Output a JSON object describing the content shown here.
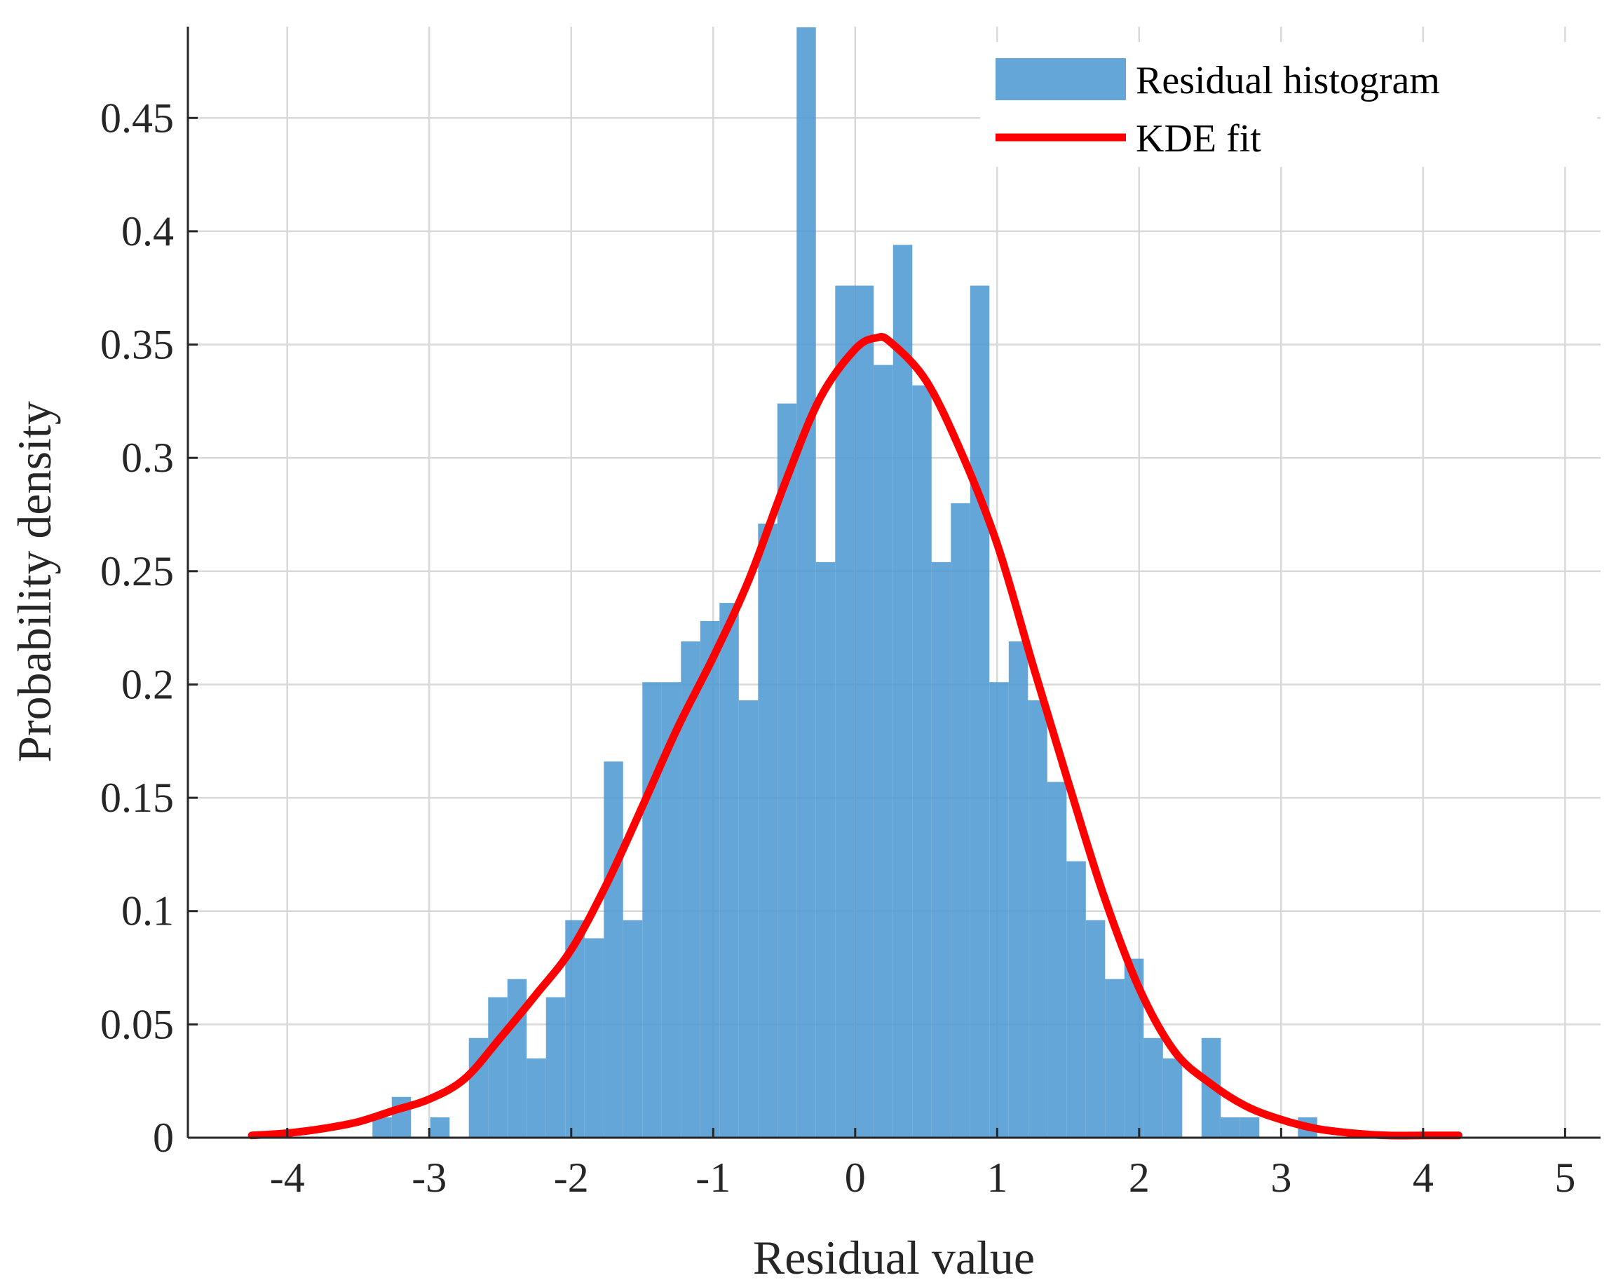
{
  "chart_data": {
    "type": "bar",
    "title": "",
    "xlabel": "Residual value",
    "ylabel": "Probability density",
    "xlim": [
      -4.7,
      5.25
    ],
    "ylim": [
      0,
      0.4903
    ],
    "grid": true,
    "legend_position": "top-right",
    "x_ticks": [
      -4,
      -3,
      -2,
      -1,
      0,
      1,
      2,
      3,
      4,
      5
    ],
    "x_tick_labels": [
      "-4",
      "-3",
      "-2",
      "-1",
      "0",
      "1",
      "2",
      "3",
      "4",
      "5"
    ],
    "y_ticks": [
      0,
      0.05,
      0.1,
      0.15,
      0.2,
      0.25,
      0.3,
      0.35,
      0.4,
      0.45
    ],
    "y_tick_labels": [
      "0",
      "0.05",
      "0.1",
      "0.15",
      "0.2",
      "0.25",
      "0.3",
      "0.35",
      "0.4",
      "0.45"
    ],
    "series": [
      {
        "name": "Residual histogram",
        "type": "histogram",
        "color": "#4a96d1",
        "bin_start": -3.4,
        "bin_width": 0.1358,
        "values": [
          0.009,
          0.018,
          0.0,
          0.009,
          0.0,
          0.044,
          0.062,
          0.07,
          0.035,
          0.062,
          0.096,
          0.088,
          0.166,
          0.096,
          0.201,
          0.201,
          0.219,
          0.228,
          0.236,
          0.193,
          0.271,
          0.324,
          0.49,
          0.254,
          0.376,
          0.376,
          0.341,
          0.394,
          0.332,
          0.254,
          0.28,
          0.376,
          0.201,
          0.219,
          0.193,
          0.157,
          0.122,
          0.096,
          0.07,
          0.079,
          0.044,
          0.035,
          0.0,
          0.044,
          0.009,
          0.009,
          0.0,
          0.0,
          0.009
        ]
      },
      {
        "name": "KDE fit",
        "type": "line",
        "color": "#ff0000",
        "x": [
          -4.25,
          -4.0,
          -3.75,
          -3.5,
          -3.25,
          -3.0,
          -2.75,
          -2.5,
          -2.25,
          -2.0,
          -1.75,
          -1.5,
          -1.25,
          -1.0,
          -0.75,
          -0.5,
          -0.25,
          0.0,
          0.15,
          0.25,
          0.5,
          0.75,
          1.0,
          1.25,
          1.5,
          1.75,
          2.0,
          2.25,
          2.5,
          2.75,
          3.0,
          3.25,
          3.5,
          3.75,
          4.0,
          4.25
        ],
        "y": [
          0.001,
          0.002,
          0.004,
          0.007,
          0.012,
          0.017,
          0.026,
          0.044,
          0.063,
          0.083,
          0.112,
          0.146,
          0.181,
          0.212,
          0.246,
          0.288,
          0.326,
          0.348,
          0.353,
          0.351,
          0.334,
          0.302,
          0.262,
          0.209,
          0.157,
          0.107,
          0.066,
          0.038,
          0.024,
          0.014,
          0.008,
          0.004,
          0.002,
          0.001,
          0.001,
          0.001
        ]
      }
    ]
  }
}
